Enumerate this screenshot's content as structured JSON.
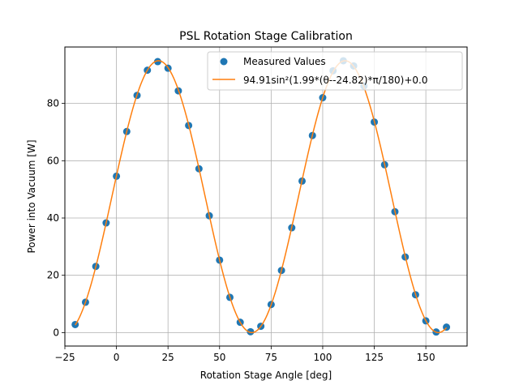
{
  "chart_data": {
    "type": "scatter",
    "title": "PSL Rotation Stage Calibration",
    "xlabel": "Rotation Stage Angle [deg]",
    "ylabel": "Power into Vacuum [W]",
    "xlim": [
      -25,
      170
    ],
    "ylim": [
      -4.7,
      99.7
    ],
    "xticks": [
      -25,
      0,
      25,
      50,
      75,
      100,
      125,
      150
    ],
    "yticks": [
      0,
      20,
      40,
      60,
      80
    ],
    "grid": true,
    "legend_position": "upper right",
    "series": [
      {
        "name": "Measured Values",
        "kind": "scatter",
        "color": "#1f77b4",
        "x": [
          -20,
          -15,
          -10,
          -5,
          0,
          5,
          10,
          15,
          20,
          25,
          30,
          35,
          40,
          45,
          50,
          55,
          60,
          65,
          70,
          75,
          80,
          85,
          90,
          95,
          100,
          105,
          110,
          115,
          120,
          125,
          130,
          135,
          140,
          145,
          150,
          155,
          160
        ],
        "y": [
          2.8,
          10.6,
          23.1,
          38.3,
          54.6,
          70.2,
          82.8,
          91.6,
          94.6,
          92.3,
          84.4,
          72.3,
          57.2,
          40.8,
          25.3,
          12.3,
          3.6,
          0.3,
          2.2,
          9.8,
          21.7,
          36.6,
          52.9,
          68.8,
          82.0,
          91.4,
          94.9,
          93.1,
          86.1,
          73.5,
          58.6,
          42.2,
          26.4,
          13.2,
          4.1,
          0.2,
          1.9
        ]
      },
      {
        "name": "94.91sin²(1.99*(θ--24.82)*π/180)+0.0",
        "kind": "line",
        "color": "#ff7f0e",
        "model": {
          "amplitude": 94.91,
          "frequency": 1.99,
          "phase": -24.82,
          "offset": 0.0,
          "x_range": [
            -20,
            160
          ]
        }
      }
    ]
  }
}
